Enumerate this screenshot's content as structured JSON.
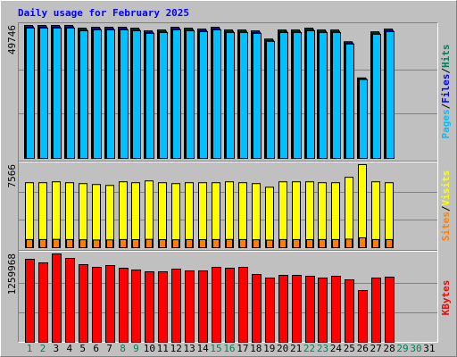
{
  "chart_data": [
    {
      "type": "bar",
      "title": "Daily usage for February 2025",
      "ylim": [
        0,
        49746
      ],
      "yticks": [
        49746
      ],
      "legend_separator": "/",
      "grid": true,
      "series": [
        {
          "name": "Pages",
          "color": "#00c0ff",
          "values": [
            48750,
            48750,
            48750,
            48750,
            47756,
            48088,
            48088,
            48088,
            47756,
            46760,
            47092,
            48088,
            47756,
            47424,
            48088,
            47092,
            47092,
            46760,
            43777,
            47092,
            47092,
            47756,
            47092,
            47092,
            42781,
            29516,
            46428,
            47424,
            null,
            null,
            null
          ]
        },
        {
          "name": "Files",
          "color": "#0000ff",
          "values": [
            49249,
            49249,
            49249,
            49249,
            48244,
            48578,
            48578,
            48578,
            48244,
            47238,
            47573,
            48578,
            48244,
            47908,
            48578,
            47573,
            47573,
            47238,
            44223,
            47573,
            47573,
            48244,
            47573,
            47573,
            43217,
            29817,
            46903,
            47908,
            null,
            null,
            null
          ]
        },
        {
          "name": "Hits",
          "color": "#00805c",
          "values": [
            49746,
            49746,
            49746,
            49746,
            48731,
            49069,
            49069,
            49069,
            48731,
            47715,
            48054,
            49069,
            48731,
            48392,
            49069,
            48054,
            48054,
            47715,
            44670,
            48054,
            48054,
            48731,
            48054,
            48054,
            43654,
            30118,
            47377,
            48392,
            null,
            null,
            null
          ]
        }
      ]
    },
    {
      "type": "bar",
      "ylim": [
        0,
        7566
      ],
      "yticks": [
        7566
      ],
      "grid": true,
      "series": [
        {
          "name": "Sites",
          "color": "#ff8000",
          "values": [
            740,
            740,
            760,
            740,
            720,
            700,
            710,
            740,
            730,
            760,
            730,
            720,
            740,
            730,
            740,
            750,
            740,
            720,
            690,
            740,
            740,
            730,
            740,
            740,
            780,
            900,
            740,
            740,
            null,
            null,
            null
          ]
        },
        {
          "name": "Visits",
          "color": "#ffff00",
          "values": [
            5921,
            5921,
            6003,
            5921,
            5839,
            5757,
            5674,
            6003,
            5921,
            6085,
            5921,
            5839,
            5921,
            5921,
            5921,
            6003,
            5921,
            5839,
            5510,
            6003,
            6003,
            6003,
            5921,
            5921,
            6415,
            7566,
            6003,
            5921,
            null,
            null,
            null
          ]
        }
      ]
    },
    {
      "type": "bar",
      "ylim": [
        0,
        1259968
      ],
      "yticks": [
        1259968
      ],
      "grid": true,
      "series": [
        {
          "name": "KBytes",
          "color": "#ff0000",
          "values": [
            1183607,
            1132700,
            1259968,
            1196334,
            1107246,
            1069065,
            1094519,
            1056337,
            1030884,
            1005430,
            1005430,
            1043611,
            1018157,
            1018157,
            1069065,
            1056337,
            1069065,
            967249,
            916341,
            954522,
            954522,
            941795,
            916341,
            941795,
            890887,
            738163,
            916341,
            929068,
            null,
            null,
            null
          ]
        }
      ],
      "categories": [
        "1",
        "2",
        "3",
        "4",
        "5",
        "6",
        "7",
        "8",
        "9",
        "10",
        "11",
        "12",
        "13",
        "14",
        "15",
        "16",
        "17",
        "18",
        "19",
        "20",
        "21",
        "22",
        "23",
        "24",
        "25",
        "26",
        "27",
        "28",
        "29",
        "30",
        "31"
      ],
      "category_colors": [
        "#00805c",
        "#00805c",
        "#000000",
        "#000000",
        "#000000",
        "#000000",
        "#000000",
        "#00805c",
        "#00805c",
        "#000000",
        "#000000",
        "#000000",
        "#000000",
        "#000000",
        "#00805c",
        "#00805c",
        "#000000",
        "#000000",
        "#000000",
        "#000000",
        "#000000",
        "#00805c",
        "#00805c",
        "#000000",
        "#000000",
        "#000000",
        "#000000",
        "#000000",
        "#00805c",
        "#00805c",
        "#000000"
      ]
    }
  ]
}
